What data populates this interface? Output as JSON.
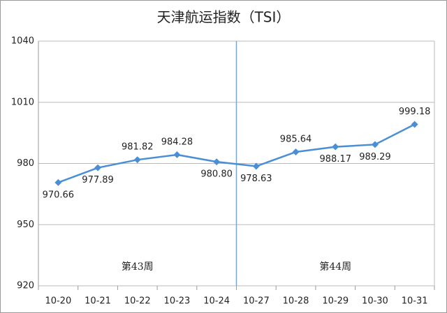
{
  "chart_data": {
    "type": "line",
    "title": "天津航运指数（TSI）",
    "categories": [
      "10-20",
      "10-21",
      "10-22",
      "10-23",
      "10-24",
      "10-27",
      "10-28",
      "10-29",
      "10-30",
      "10-31"
    ],
    "values": [
      970.66,
      977.89,
      981.82,
      984.28,
      980.8,
      978.63,
      985.64,
      988.17,
      989.29,
      999.18
    ],
    "value_labels": [
      "970.66",
      "977.89",
      "981.82",
      "984.28",
      "980.80",
      "978.63",
      "985.64",
      "988.17",
      "989.29",
      "999.18"
    ],
    "color": "#4a8fd6",
    "ylim": [
      920,
      1040
    ],
    "yticks": [
      920,
      950,
      980,
      1010,
      1040
    ],
    "grid": true,
    "annotations": [
      "第43周",
      "第44周"
    ]
  }
}
